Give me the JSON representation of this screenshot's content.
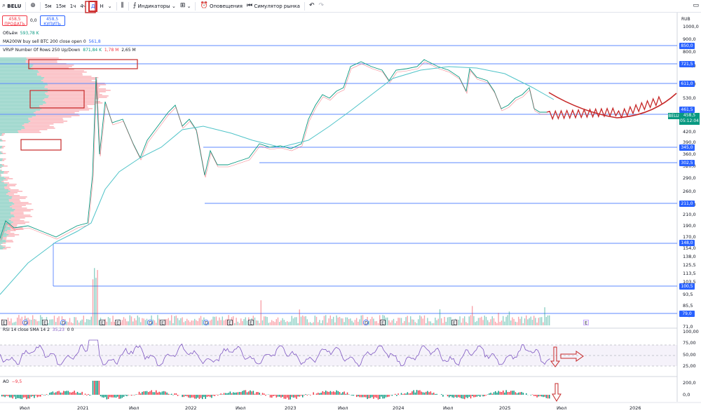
{
  "toolbar": {
    "symbol": "BELU",
    "timeframes": [
      "5м",
      "15м",
      "1ч",
      "4ч",
      "Д",
      "Н"
    ],
    "active_timeframe": "Д",
    "indicators_label": "Индикаторы",
    "alerts_label": "Оповещения",
    "replay_label": "Симулятор рынка"
  },
  "trade": {
    "sell_price": "458,5",
    "sell_label": "ПРОДАТЬ",
    "spread": "0,0",
    "buy_price": "458,5",
    "buy_label": "КУПИТЬ"
  },
  "legends": {
    "volume": {
      "name": "Объём",
      "value": "593,78 K"
    },
    "ma": {
      "name": "MA200W buy sell BTC 200 close open 0",
      "value": "561,8"
    },
    "vrvp": {
      "name": "VRVP Number Of Rows 250 Up/Down",
      "up": "871,84 K",
      "down": "1,78 M",
      "total": "2,65 M"
    }
  },
  "currency": "RUB",
  "price_axis": [
    "1000,0",
    "900,0",
    "800,0",
    "700,0",
    "600,0",
    "530,0",
    "470,0",
    "420,0",
    "390,0",
    "360,0",
    "320,0",
    "290,0",
    "260,0",
    "230,0",
    "210,0",
    "190,0",
    "170,0",
    "154,0",
    "138,0",
    "125,5",
    "113,5",
    "103,5",
    "93,5",
    "85,5",
    "77,5",
    "71,0"
  ],
  "level_lines": [
    "850,0",
    "721,5",
    "611,0",
    "461,5",
    "345,0",
    "302,5",
    "211,0",
    "148,0",
    "100,5",
    "79,0"
  ],
  "current": {
    "ticker": "BELU",
    "price": "458,5",
    "countdown": "05:12:04"
  },
  "rsi": {
    "legend": "RSI 14 close SMA 14 2",
    "value": "35,23",
    "zeros": "0 0",
    "axis": [
      "100,00",
      "75,00",
      "50,00",
      "25,00"
    ]
  },
  "ao": {
    "legend": "AO",
    "value": "−9,5",
    "axis": [
      "200,0",
      "0,0"
    ]
  },
  "time_axis": [
    "Июл",
    "2021",
    "Июл",
    "2022",
    "Июл",
    "2023",
    "Июл",
    "2024",
    "Июл",
    "2025",
    "Июл",
    "2026"
  ],
  "event_marks": [
    "E",
    "D",
    "E",
    "D",
    "E",
    "E",
    "D",
    "E",
    "D",
    "E",
    "E",
    "D",
    "E",
    "E",
    "E"
  ],
  "colors": {
    "up": "#089981",
    "down": "#f23645",
    "ma": "#4fc3c8",
    "level": "#2962ff",
    "annot": "#c62828",
    "rsi": "#7e57c2"
  }
}
